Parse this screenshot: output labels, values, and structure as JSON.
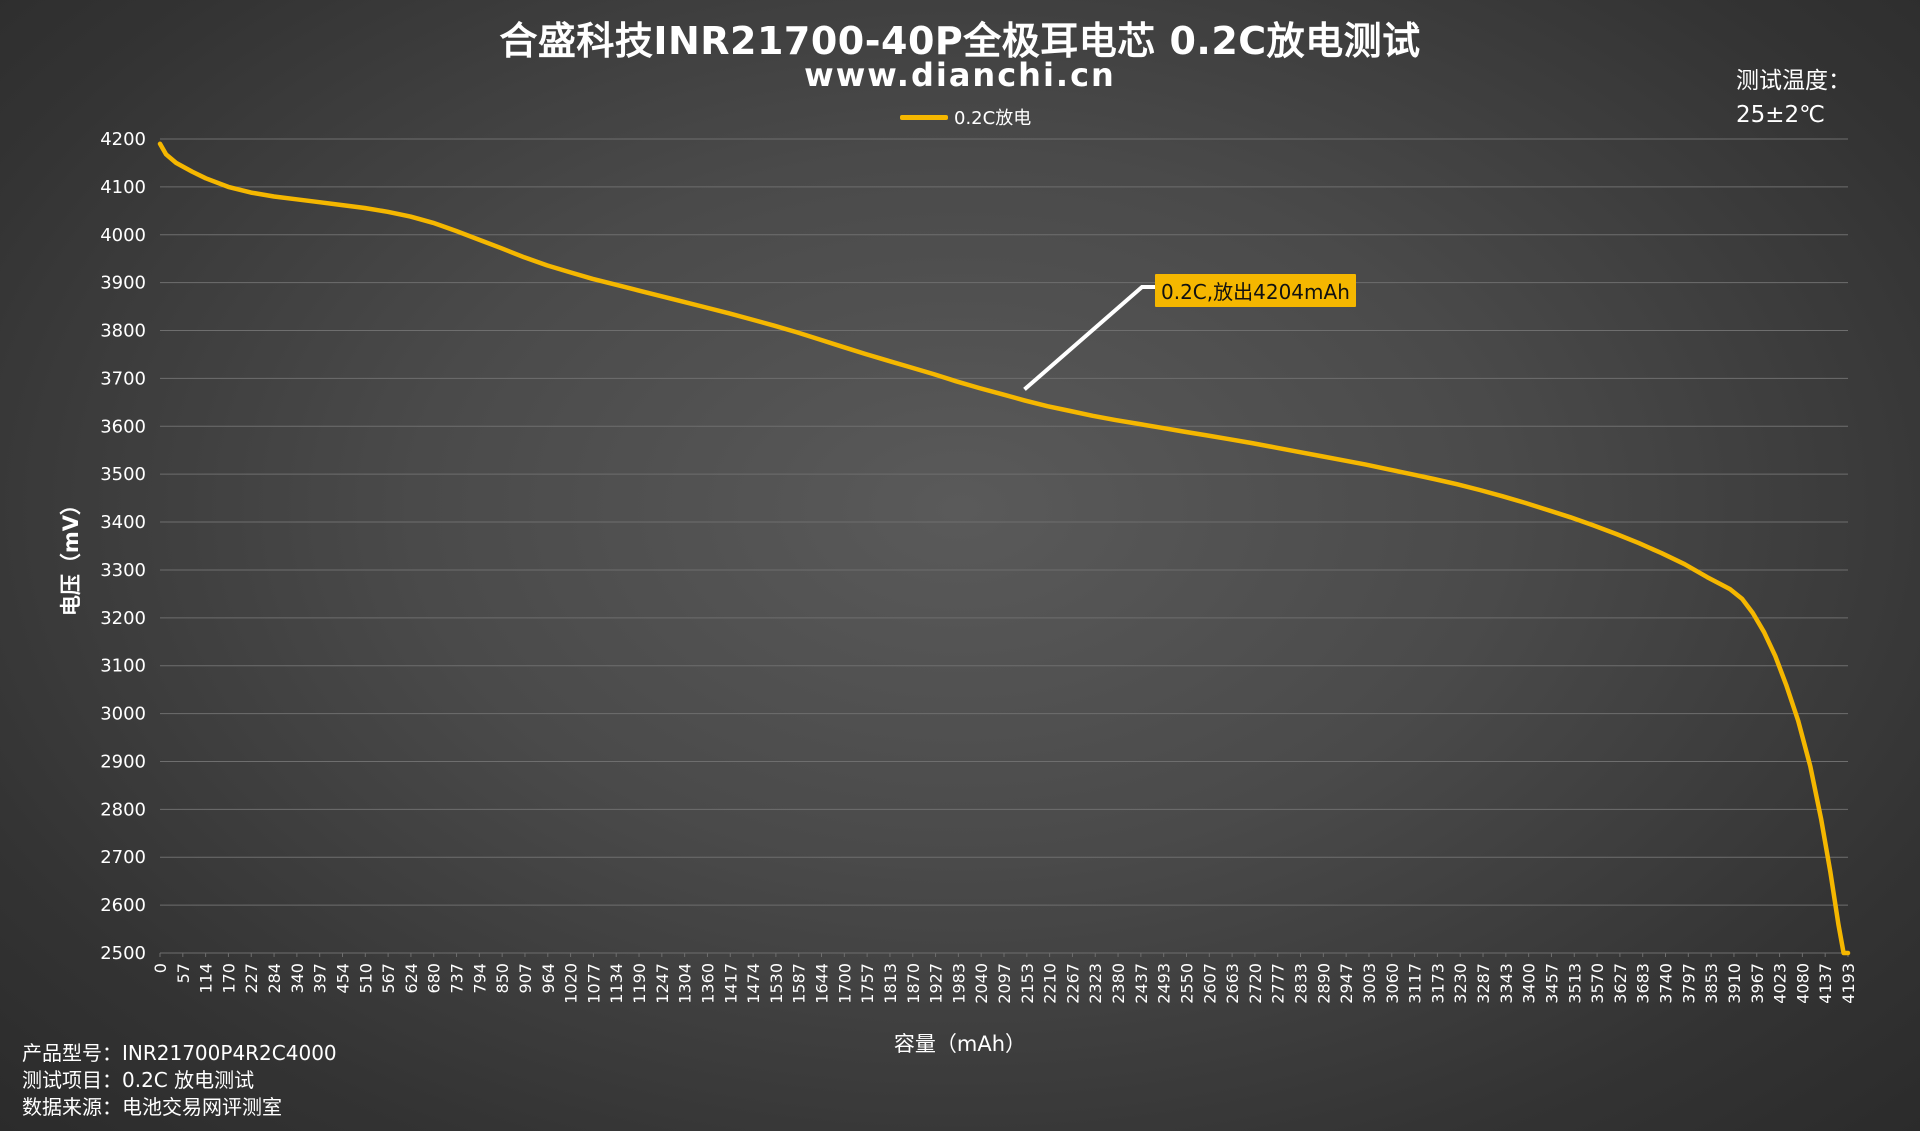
{
  "header": {
    "title": "合盛科技INR21700-40P全极耳电芯 0.2C放电测试",
    "subtitle": "www.dianchi.cn",
    "temp_line1": "测试温度：",
    "temp_line2": "25±2℃"
  },
  "legend": {
    "label": "0.2C放电"
  },
  "callout": {
    "text": "0.2C,放出4204mAh"
  },
  "info": {
    "model_label": "产品型号：",
    "model_value": "INR21700P4R2C4000",
    "item_label": "测试项目：",
    "item_value": "0.2C 放电测试",
    "source_label": "数据来源：",
    "source_value": "电池交易网评测室"
  },
  "colors": {
    "line": "#f5b700",
    "grid": "#6e6e6e",
    "axis_text": "#ffffff"
  },
  "chart_data": {
    "type": "line",
    "title": "合盛科技INR21700-40P全极耳电芯 0.2C放电测试",
    "xlabel": "容量（mAh）",
    "ylabel": "电压（mV）",
    "ylim": [
      2500,
      4200
    ],
    "xlim": [
      0,
      4204
    ],
    "y_ticks": [
      2500,
      2600,
      2700,
      2800,
      2900,
      3000,
      3100,
      3200,
      3300,
      3400,
      3500,
      3600,
      3700,
      3800,
      3900,
      4000,
      4100,
      4200
    ],
    "x_ticks": [
      "0",
      "57",
      "114",
      "170",
      "227",
      "284",
      "340",
      "397",
      "454",
      "510",
      "567",
      "624",
      "680",
      "737",
      "794",
      "850",
      "907",
      "964",
      "1020",
      "1077",
      "1134",
      "1190",
      "1247",
      "1304",
      "1360",
      "1417",
      "1474",
      "1530",
      "1587",
      "1644",
      "1700",
      "1757",
      "1813",
      "1870",
      "1927",
      "1983",
      "2040",
      "2097",
      "2153",
      "2210",
      "2267",
      "2323",
      "2380",
      "2437",
      "2493",
      "2550",
      "2607",
      "2663",
      "2720",
      "2777",
      "2833",
      "2890",
      "2947",
      "3003",
      "3060",
      "3117",
      "3173",
      "3230",
      "3287",
      "3343",
      "3400",
      "3457",
      "3513",
      "3570",
      "3627",
      "3683",
      "3740",
      "3797",
      "3853",
      "3910",
      "3967",
      "4023",
      "4080",
      "4137",
      "4193"
    ],
    "grid": true,
    "legend_position": "top-center",
    "series": [
      {
        "name": "0.2C放电",
        "x": [
          0,
          15,
          40,
          80,
          114,
          170,
          227,
          284,
          340,
          397,
          454,
          510,
          567,
          624,
          680,
          737,
          794,
          850,
          907,
          964,
          1020,
          1077,
          1134,
          1190,
          1247,
          1304,
          1360,
          1417,
          1474,
          1530,
          1587,
          1644,
          1700,
          1757,
          1813,
          1870,
          1927,
          1983,
          2040,
          2097,
          2153,
          2210,
          2267,
          2323,
          2380,
          2437,
          2493,
          2550,
          2607,
          2663,
          2720,
          2777,
          2833,
          2890,
          2947,
          3003,
          3060,
          3117,
          3173,
          3230,
          3287,
          3343,
          3400,
          3457,
          3513,
          3570,
          3627,
          3683,
          3740,
          3797,
          3853,
          3910,
          3940,
          3967,
          3995,
          4023,
          4050,
          4080,
          4110,
          4137,
          4160,
          4180,
          4193,
          4204
        ],
        "values": [
          4190,
          4168,
          4150,
          4132,
          4118,
          4100,
          4088,
          4080,
          4074,
          4068,
          4062,
          4056,
          4048,
          4038,
          4025,
          4008,
          3990,
          3972,
          3953,
          3936,
          3922,
          3908,
          3896,
          3884,
          3872,
          3860,
          3848,
          3836,
          3823,
          3810,
          3796,
          3781,
          3766,
          3751,
          3737,
          3723,
          3709,
          3694,
          3680,
          3667,
          3654,
          3642,
          3632,
          3622,
          3613,
          3605,
          3597,
          3589,
          3581,
          3573,
          3565,
          3556,
          3547,
          3538,
          3529,
          3520,
          3510,
          3500,
          3490,
          3479,
          3467,
          3454,
          3440,
          3425,
          3410,
          3393,
          3375,
          3356,
          3335,
          3312,
          3285,
          3260,
          3240,
          3210,
          3170,
          3120,
          3060,
          2985,
          2890,
          2780,
          2670,
          2560,
          2500,
          2500
        ]
      }
    ]
  }
}
